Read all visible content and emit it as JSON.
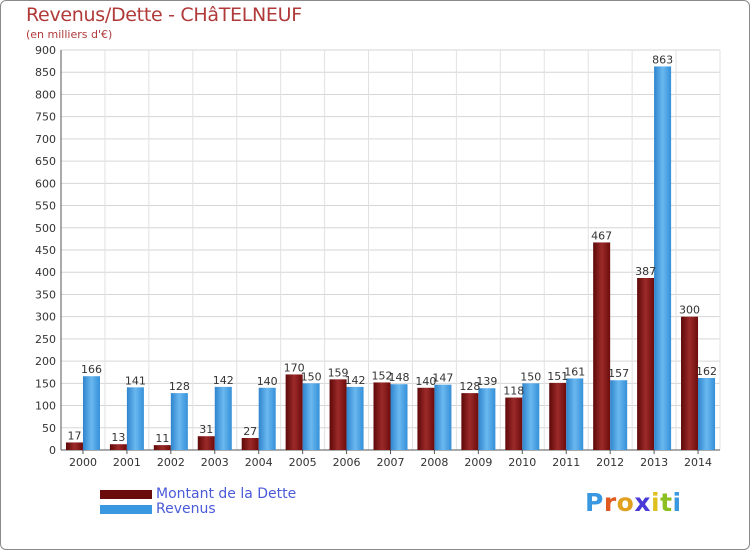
{
  "header": {
    "title": "Revenus/Dette - CHâTELNEUF",
    "subtitle": "(en milliers d'€)"
  },
  "chart_data": {
    "type": "bar",
    "categories": [
      "2000",
      "2001",
      "2002",
      "2003",
      "2004",
      "2005",
      "2006",
      "2007",
      "2008",
      "2009",
      "2010",
      "2011",
      "2012",
      "2013",
      "2014"
    ],
    "series": [
      {
        "name": "Montant de la Dette",
        "color": "#8b1a1a",
        "values": [
          17,
          13,
          11,
          31,
          27,
          170,
          159,
          152,
          140,
          128,
          118,
          151,
          467,
          387,
          300
        ]
      },
      {
        "name": "Revenus",
        "color": "#3a98e0",
        "values": [
          166,
          141,
          128,
          142,
          140,
          150,
          142,
          148,
          147,
          139,
          150,
          161,
          157,
          863,
          162
        ]
      }
    ],
    "yticks": [
      0,
      50,
      100,
      150,
      200,
      250,
      300,
      350,
      400,
      450,
      500,
      550,
      600,
      650,
      700,
      750,
      800,
      850,
      900
    ],
    "ylim": [
      0,
      900
    ],
    "grid": true,
    "legend_position": "bottom-left"
  },
  "legend": {
    "items": [
      {
        "label": "Montant de la Dette",
        "color": "#6b0c0c"
      },
      {
        "label": "Revenus",
        "color": "#3a98e0"
      }
    ]
  },
  "logo": {
    "text": "Proxiti",
    "letter_colors": [
      "#3a98e0",
      "#e05a20",
      "#e0a020",
      "#4a3ad8",
      "#e0c020",
      "#8bc020",
      "#3a98e0"
    ]
  }
}
